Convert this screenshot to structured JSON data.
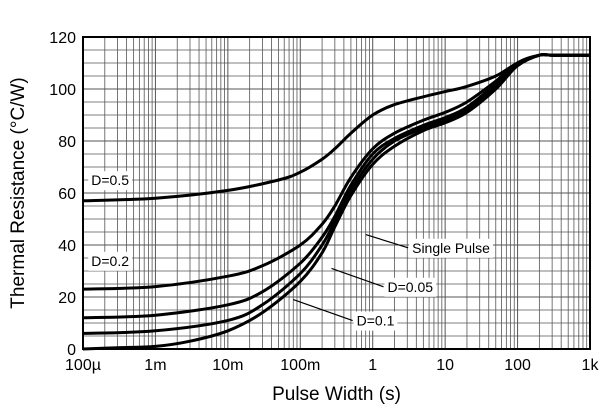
{
  "chart_data": {
    "type": "line",
    "xlabel": "Pulse Width (s)",
    "ylabel": "Thermal Resistance (°C/W)",
    "xscale": "log",
    "xlim": [
      0.0001,
      1000
    ],
    "ylim": [
      0,
      120
    ],
    "grid": "on",
    "x_tick_labels": [
      "100µ",
      "1m",
      "10m",
      "100m",
      "1",
      "10",
      "100",
      "1k"
    ],
    "y_tick_labels": [
      "0",
      "20",
      "40",
      "60",
      "80",
      "100",
      "120"
    ],
    "x_ticks": [
      0.0001,
      0.001,
      0.01,
      0.1,
      1,
      10,
      100,
      1000
    ],
    "y_ticks": [
      0,
      20,
      40,
      60,
      80,
      100,
      120
    ],
    "series": [
      {
        "name": "D=0.5",
        "x": [
          0.0001,
          0.001,
          0.01,
          0.05,
          0.1,
          0.2,
          0.3,
          0.5,
          1,
          2,
          5,
          10,
          20,
          50,
          100,
          200,
          300,
          1000
        ],
        "y": [
          57,
          58,
          61,
          65,
          68,
          73,
          77,
          83,
          90,
          94,
          97,
          99,
          101,
          105,
          110,
          113,
          113,
          113
        ]
      },
      {
        "name": "D=0.2",
        "x": [
          0.0001,
          0.001,
          0.01,
          0.03,
          0.1,
          0.2,
          0.3,
          0.5,
          1,
          2,
          5,
          10,
          20,
          50,
          100,
          200,
          300,
          1000
        ],
        "y": [
          23,
          24,
          28,
          32,
          40,
          48,
          55,
          66,
          77,
          83,
          88,
          91,
          95,
          103,
          110,
          113,
          113,
          113
        ]
      },
      {
        "name": "D=0.1",
        "x": [
          0.0001,
          0.001,
          0.01,
          0.03,
          0.1,
          0.2,
          0.3,
          0.5,
          1,
          2,
          5,
          10,
          20,
          50,
          100,
          200,
          300,
          1000
        ],
        "y": [
          12,
          13,
          17,
          22,
          33,
          43,
          51,
          63,
          75,
          81,
          86,
          89,
          93,
          102,
          110,
          113,
          113,
          113
        ]
      },
      {
        "name": "D=0.05",
        "x": [
          0.0001,
          0.001,
          0.01,
          0.03,
          0.1,
          0.2,
          0.3,
          0.5,
          1,
          2,
          5,
          10,
          20,
          50,
          100,
          200,
          300,
          1000
        ],
        "y": [
          6,
          7,
          11,
          17,
          29,
          40,
          49,
          61,
          73,
          80,
          85,
          88,
          92,
          101,
          109,
          113,
          113,
          113
        ]
      },
      {
        "name": "Single Pulse",
        "x": [
          0.0001,
          0.0003,
          0.001,
          0.003,
          0.01,
          0.03,
          0.1,
          0.2,
          0.3,
          0.5,
          1,
          2,
          5,
          10,
          20,
          50,
          100,
          200,
          300,
          1000
        ],
        "y": [
          0,
          0.5,
          1,
          3,
          7,
          14,
          26,
          37,
          47,
          59,
          71,
          78,
          84,
          87,
          91,
          100,
          109,
          113,
          113,
          113
        ]
      }
    ],
    "annotations": [
      {
        "text": "D=0.5",
        "x": 0.00013,
        "y": 63
      },
      {
        "text": "D=0.2",
        "x": 0.00013,
        "y": 32
      },
      {
        "text": "Single Pulse",
        "x": 3.5,
        "y": 37,
        "leader_to": {
          "x": 0.8,
          "y": 44
        }
      },
      {
        "text": "D=0.05",
        "x": 1.6,
        "y": 22,
        "leader_to": {
          "x": 0.27,
          "y": 31
        }
      },
      {
        "text": "D=0.1",
        "x": 0.6,
        "y": 9,
        "leader_to": {
          "x": 0.08,
          "y": 19
        }
      }
    ]
  }
}
